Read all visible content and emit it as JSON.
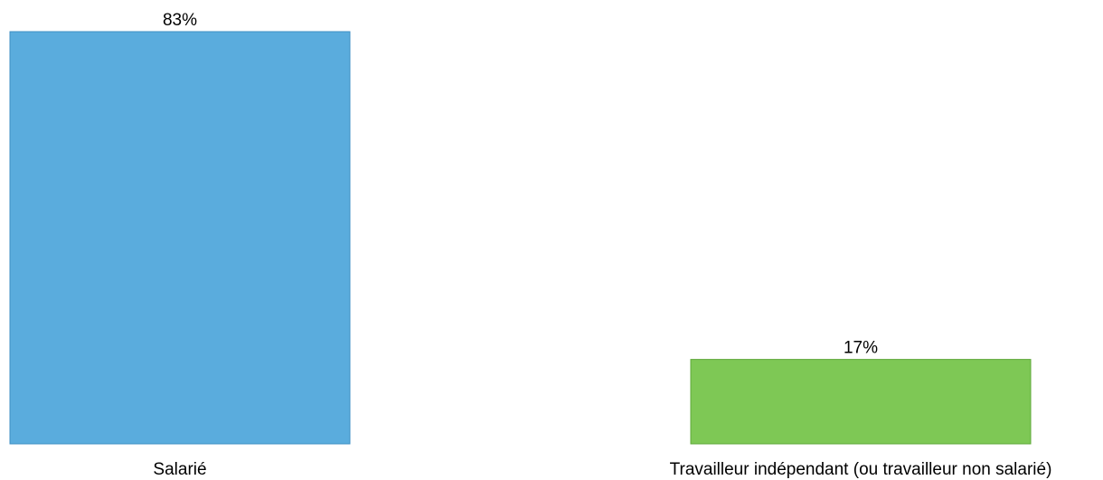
{
  "chart_data": {
    "type": "bar",
    "categories": [
      "Salarié",
      "Travailleur indépendant (ou travailleur non salarié)"
    ],
    "values": [
      83,
      17
    ],
    "data_labels": [
      "83%",
      "17%"
    ],
    "colors": [
      "#5aacdd",
      "#7ec855"
    ],
    "border_colors": [
      "#3f8fc4",
      "#5fa83a"
    ],
    "title": "",
    "xlabel": "",
    "ylabel": "",
    "ylim": [
      0,
      83
    ],
    "grid": false,
    "legend": "none"
  }
}
